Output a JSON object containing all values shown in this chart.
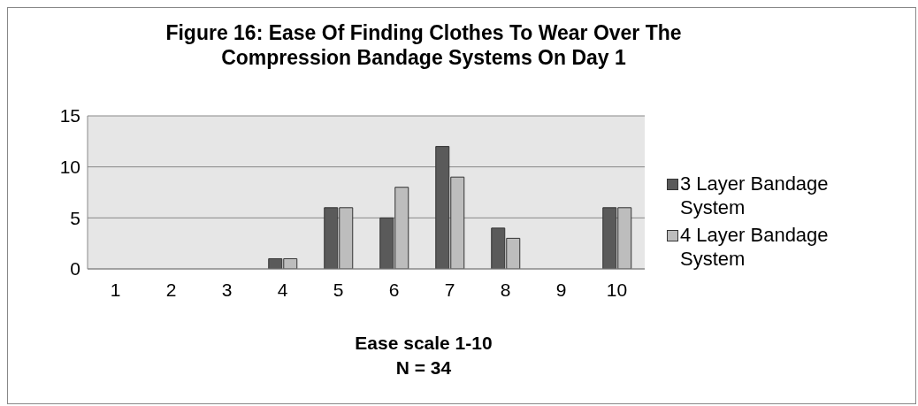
{
  "chart_data": {
    "type": "bar",
    "title": "Figure 16: Ease Of Finding Clothes To Wear Over The Compression Bandage Systems On Day 1",
    "xlabel": "Ease scale 1-10",
    "annotations": [
      "N = 34"
    ],
    "categories": [
      "1",
      "2",
      "3",
      "4",
      "5",
      "6",
      "7",
      "8",
      "9",
      "10"
    ],
    "series": [
      {
        "name": "3 Layer Bandage System",
        "color": "#5a5a5a",
        "values": [
          0,
          0,
          0,
          1,
          6,
          5,
          12,
          4,
          0,
          6
        ]
      },
      {
        "name": "4 Layer Bandage System",
        "color": "#bdbdbd",
        "values": [
          0,
          0,
          0,
          1,
          6,
          8,
          9,
          3,
          0,
          6
        ]
      }
    ],
    "ylim": [
      0,
      15
    ],
    "yticks": [
      0,
      5,
      10,
      15
    ],
    "grid": "y",
    "legend": "right"
  }
}
